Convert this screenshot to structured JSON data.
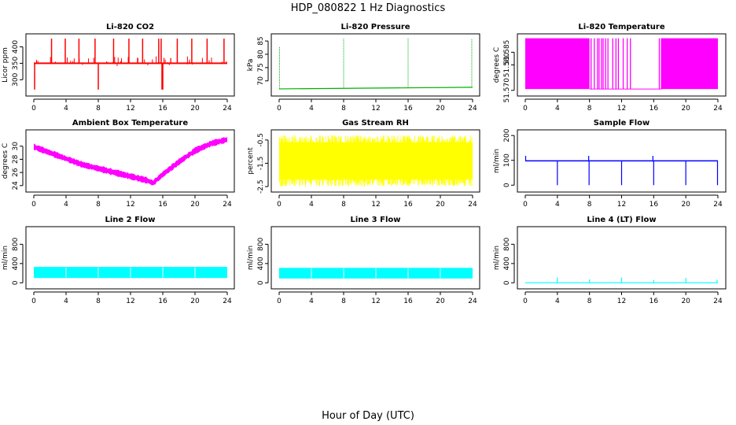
{
  "figure": {
    "title": "HDP_080822  1 Hz Diagnostics",
    "xlabel": "Hour of Day (UTC)"
  },
  "chart_data": [
    {
      "type": "line",
      "title": "Li-820 CO2",
      "ylabel": "Licor ppm",
      "color": "#ff0000",
      "xlim": [
        0,
        24
      ],
      "ylim": [
        260,
        430
      ],
      "xticks": [
        "0",
        "4",
        "8",
        "12",
        "16",
        "20",
        "24"
      ],
      "yticks": [
        {
          "value": 300,
          "label": "300"
        },
        {
          "value": 350,
          "label": "350"
        },
        {
          "value": 400,
          "label": "400"
        }
      ],
      "baseline": 350,
      "spikes_up": [
        2.2,
        3.9,
        5.6,
        7.6,
        9.9,
        11.8,
        13.5,
        15.5,
        15.8,
        17.8,
        19.6,
        21.5,
        23.6
      ],
      "spike_up_value": 425,
      "spikes_down": [
        0.1,
        8.0,
        15.9,
        16.0
      ],
      "spike_down_value": 270
    },
    {
      "type": "line",
      "title": "Li-820 Pressure",
      "ylabel": "kPa",
      "color": "#00b000",
      "xlim": [
        0,
        24
      ],
      "ylim": [
        65.5,
        86.5
      ],
      "xticks": [
        "0",
        "4",
        "8",
        "12",
        "16",
        "20",
        "24"
      ],
      "yticks": [
        {
          "value": 70,
          "label": "70"
        },
        {
          "value": 75,
          "label": "75"
        },
        {
          "value": 80,
          "label": "80"
        },
        {
          "value": 85,
          "label": "85"
        }
      ],
      "baseline_start": 67.0,
      "baseline_end": 67.6,
      "spikes": [
        0.05,
        8.0,
        16.0,
        23.9
      ],
      "spike_values": [
        83,
        86,
        86,
        86
      ]
    },
    {
      "type": "line",
      "title": "Li-820 Temperature",
      "ylabel": "degrees C",
      "color": "#ff00ff",
      "xlim": [
        0,
        24
      ],
      "ylim": [
        51.569,
        51.591
      ],
      "xticks": [
        "0",
        "4",
        "8",
        "12",
        "16",
        "20",
        "24"
      ],
      "yticks": [
        {
          "value": 51.57,
          "label": "51.570"
        },
        {
          "value": 51.58,
          "label": "51.580"
        },
        {
          "value": 51.585,
          "label": "51.585"
        }
      ],
      "low_value": 51.5705,
      "high_value": 51.5905,
      "solid_ranges": [
        [
          0,
          8.0
        ],
        [
          16.9,
          24
        ]
      ],
      "flicker_lines": [
        8.2,
        8.6,
        9.0,
        9.2,
        9.5,
        9.7,
        10.0,
        10.3,
        10.9,
        11.3,
        11.6,
        12.2,
        12.7,
        13.1,
        16.7
      ]
    },
    {
      "type": "line",
      "title": "Ambient Box Temperature",
      "ylabel": "degrees C",
      "color": "#ff00ff",
      "xlim": [
        0,
        24
      ],
      "ylim": [
        23.5,
        32
      ],
      "xticks": [
        "0",
        "4",
        "8",
        "12",
        "16",
        "20",
        "24"
      ],
      "yticks": [
        {
          "value": 24,
          "label": "24"
        },
        {
          "value": 26,
          "label": "26"
        },
        {
          "value": 28,
          "label": "28"
        },
        {
          "value": 30,
          "label": "30"
        }
      ],
      "x": [
        0,
        2,
        4,
        6,
        8,
        10,
        12,
        14,
        14.8,
        16,
        18,
        20,
        22,
        24
      ],
      "y": [
        29.9,
        29.0,
        28.1,
        27.2,
        26.6,
        26.0,
        25.4,
        24.8,
        24.4,
        25.7,
        27.6,
        29.3,
        30.4,
        31.0
      ],
      "noise_band": 0.6
    },
    {
      "type": "area",
      "title": "Gas Stream RH",
      "ylabel": "percent",
      "color": "#ffff00",
      "xlim": [
        0,
        24
      ],
      "ylim": [
        -2.6,
        -0.2
      ],
      "xticks": [
        "0",
        "4",
        "8",
        "12",
        "16",
        "20",
        "24"
      ],
      "yticks": [
        {
          "value": -0.5,
          "label": "-0.5"
        },
        {
          "value": -1.5,
          "label": "-1.5"
        },
        {
          "value": -2.5,
          "label": "-2.5"
        }
      ],
      "band": [
        -2.4,
        -0.4
      ]
    },
    {
      "type": "line",
      "title": "Sample Flow",
      "ylabel": "ml/min",
      "color": "#0000ff",
      "xlim": [
        0,
        24
      ],
      "ylim": [
        -15,
        210
      ],
      "xticks": [
        "0",
        "4",
        "8",
        "12",
        "16",
        "20",
        "24"
      ],
      "yticks": [
        {
          "value": 0,
          "label": "0"
        },
        {
          "value": 100,
          "label": "100"
        },
        {
          "value": 200,
          "label": "200"
        }
      ],
      "baseline": 98,
      "spikes_up": [
        0.05,
        7.9,
        15.9
      ],
      "spike_up_value": 118,
      "drops": [
        4.0,
        7.95,
        12.0,
        16.0,
        20.0,
        23.95
      ],
      "drop_value": 0
    },
    {
      "type": "area",
      "title": "Line 2 Flow",
      "ylabel": "ml/min",
      "color": "#00ffff",
      "xlim": [
        0,
        24
      ],
      "ylim": [
        -60,
        1100
      ],
      "xticks": [
        "0",
        "4",
        "8",
        "12",
        "16",
        "20",
        "24"
      ],
      "yticks": [
        {
          "value": 0,
          "label": "0"
        },
        {
          "value": 400,
          "label": "400"
        },
        {
          "value": 800,
          "label": "800"
        }
      ],
      "band": [
        100,
        330
      ],
      "gaps": [
        4.0,
        8.0,
        12.0,
        16.0,
        20.0
      ],
      "gap_value": 0
    },
    {
      "type": "area",
      "title": "Line 3 Flow",
      "ylabel": "ml/min",
      "color": "#00ffff",
      "xlim": [
        0,
        24
      ],
      "ylim": [
        -60,
        1100
      ],
      "xticks": [
        "0",
        "4",
        "8",
        "12",
        "16",
        "20",
        "24"
      ],
      "yticks": [
        {
          "value": 0,
          "label": "0"
        },
        {
          "value": 400,
          "label": "400"
        },
        {
          "value": 800,
          "label": "800"
        }
      ],
      "band": [
        90,
        310
      ],
      "gaps": [
        4.0,
        8.0,
        12.0,
        16.0,
        20.0
      ],
      "gap_value": 0
    },
    {
      "type": "line",
      "title": "Line 4 (LT) Flow",
      "ylabel": "ml/min",
      "color": "#00ffff",
      "xlim": [
        0,
        24
      ],
      "ylim": [
        -60,
        1100
      ],
      "xticks": [
        "0",
        "4",
        "8",
        "12",
        "16",
        "20",
        "24"
      ],
      "yticks": [
        {
          "value": 0,
          "label": "0"
        },
        {
          "value": 400,
          "label": "400"
        },
        {
          "value": 800,
          "label": "800"
        }
      ],
      "baseline": 0,
      "spikes": [
        4.0,
        8.0,
        12.0,
        16.0,
        20.0,
        23.9
      ],
      "spike_values": [
        110,
        70,
        110,
        60,
        100,
        60
      ]
    }
  ]
}
